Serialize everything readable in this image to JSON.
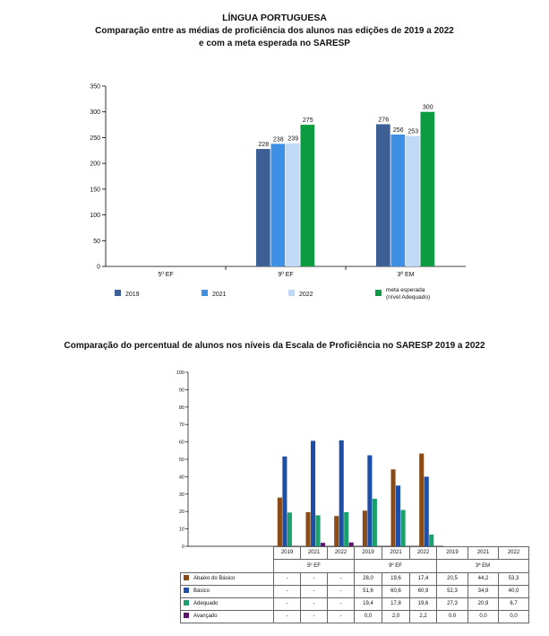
{
  "chart1": {
    "title": "LÍNGUA PORTUGUESA",
    "subtitle_line1": "Comparação entre as médias de proficiência dos alunos nas edições de 2019 a 2022",
    "subtitle_line2": "e com a meta esperada no SARESP"
  },
  "chart2": {
    "title": "Comparação do percentual de alunos nos níveis da Escala de Proficiência no SARESP 2019 a 2022",
    "row_labels": [
      "Abaixo do Básico",
      "Básico",
      "Adequado",
      "Avançado"
    ],
    "cells": [
      [
        "-",
        "-",
        "-",
        "28,0",
        "19,6",
        "17,4",
        "20,5",
        "44,2",
        "53,3"
      ],
      [
        "-",
        "-",
        "-",
        "51,6",
        "60,6",
        "60,9",
        "52,3",
        "34,9",
        "40,0"
      ],
      [
        "-",
        "-",
        "-",
        "19,4",
        "17,8",
        "19,6",
        "27,3",
        "20,9",
        "6,7"
      ],
      [
        "-",
        "-",
        "-",
        "0,0",
        "2,0",
        "2,2",
        "0,0",
        "0,0",
        "0,0"
      ]
    ]
  },
  "chart_data": [
    {
      "type": "bar",
      "title": "LÍNGUA PORTUGUESA",
      "subtitle": "Comparação entre as médias de proficiência dos alunos nas edições de 2019 a 2022 e com a meta esperada no SARESP",
      "categories": [
        "5º EF",
        "9º EF",
        "3ª EM"
      ],
      "series": [
        {
          "name": "2019",
          "color": "#3d5f93",
          "values": [
            null,
            228,
            276
          ]
        },
        {
          "name": "2021",
          "color": "#3e90e6",
          "values": [
            null,
            238,
            256
          ]
        },
        {
          "name": "2022",
          "color": "#bfd9f6",
          "values": [
            null,
            239,
            253
          ]
        },
        {
          "name": "meta esperada (nível Adequado)",
          "color": "#0d9b41",
          "values": [
            null,
            275,
            300
          ]
        }
      ],
      "data_labels": [
        [
          null,
          "228",
          "276"
        ],
        [
          null,
          "238",
          "256"
        ],
        [
          null,
          "239",
          "253"
        ],
        [
          null,
          "275",
          "300"
        ]
      ],
      "ylim": [
        0,
        350
      ],
      "yticks": [
        0,
        50,
        100,
        150,
        200,
        250,
        300,
        350
      ],
      "legend_lines": [
        [
          "2019"
        ],
        [
          "2021"
        ],
        [
          "2022"
        ],
        [
          "meta esperada",
          "(nível Adequado)"
        ]
      ],
      "legend": "bottom"
    },
    {
      "type": "bar",
      "title": "Comparação do percentual de alunos nos níveis da Escala de Proficiência no SARESP 2019 a 2022",
      "groups": [
        "5º EF",
        "9º EF",
        "3ª EM"
      ],
      "years": [
        "2019",
        "2021",
        "2022",
        "2019",
        "2021",
        "2022",
        "2019",
        "2021",
        "2022"
      ],
      "series": [
        {
          "name": "Abaixo do Básico",
          "color": "#8a4b16",
          "values": [
            null,
            null,
            null,
            28.0,
            19.6,
            17.4,
            20.5,
            44.2,
            53.3
          ]
        },
        {
          "name": "Básico",
          "color": "#1d4ea8",
          "values": [
            null,
            null,
            null,
            51.6,
            60.6,
            60.9,
            52.3,
            34.9,
            40.0
          ]
        },
        {
          "name": "Adequado",
          "color": "#1aa06a",
          "values": [
            null,
            null,
            null,
            19.4,
            17.8,
            19.6,
            27.3,
            20.9,
            6.7
          ]
        },
        {
          "name": "Avançado",
          "color": "#5c1470",
          "values": [
            null,
            null,
            null,
            0.0,
            2.0,
            2.2,
            0.0,
            0.0,
            0.0
          ]
        }
      ],
      "ylim": [
        0,
        100
      ],
      "yticks": [
        "0",
        "10",
        "20",
        "30",
        "40",
        "50",
        "60",
        "70",
        "80",
        "90",
        "100"
      ],
      "legend": "table-left"
    }
  ]
}
